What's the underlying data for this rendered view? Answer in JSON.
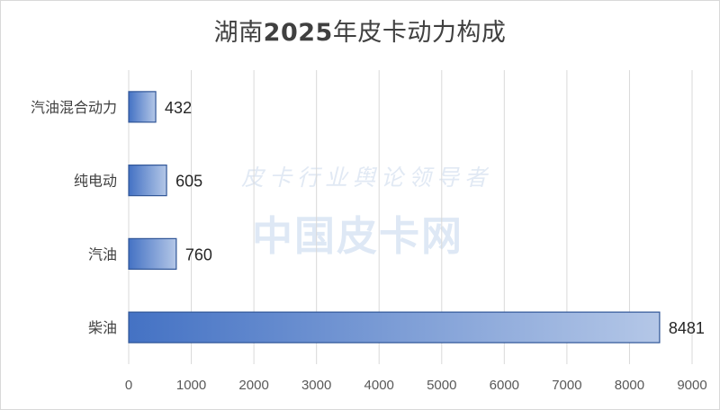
{
  "chart_data": {
    "type": "bar",
    "orientation": "horizontal",
    "title": "湖南2025年皮卡动力构成",
    "categories": [
      "汽油混合动力",
      "纯电动",
      "汽油",
      "柴油"
    ],
    "values": [
      432,
      605,
      760,
      8481
    ],
    "data_labels": [
      "432",
      "605",
      "760",
      "8481"
    ],
    "xlim": [
      0,
      9000
    ],
    "x_ticks": [
      "0",
      "1000",
      "2000",
      "3000",
      "4000",
      "5000",
      "6000",
      "7000",
      "8000",
      "9000"
    ],
    "grid": "vertical",
    "legend": "none",
    "bar_gradient": [
      "#4472c4",
      "#b4c7e7"
    ],
    "bar_border": "#2f5597"
  },
  "watermark": {
    "line1": "皮卡行业舆论领导者",
    "line2": "中国皮卡网"
  }
}
